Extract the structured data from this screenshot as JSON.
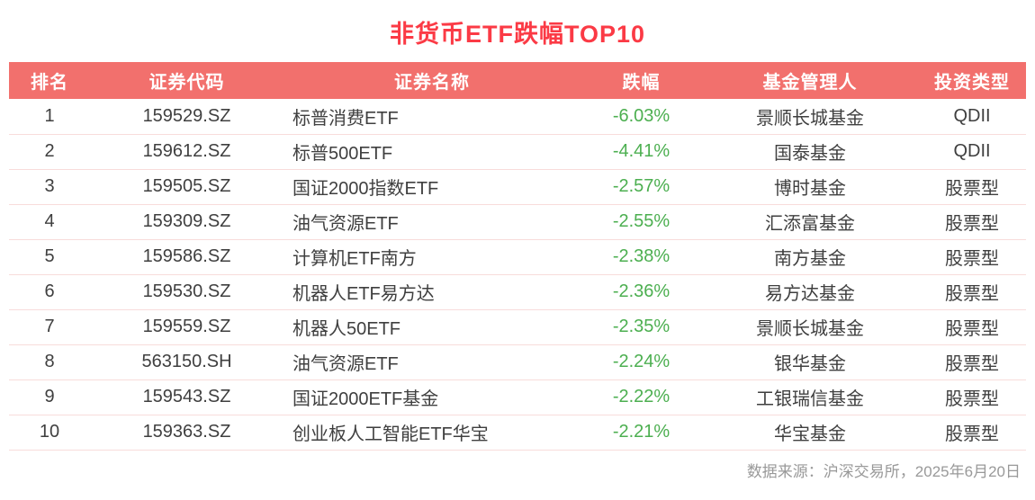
{
  "title": "非货币ETF跌幅TOP10",
  "footer": {
    "source": "数据来源：沪深交易所，2025年6月20日"
  },
  "colors": {
    "title": "#fb3a45",
    "header_bg": "#f2706d",
    "decline": "#4caf50",
    "row_border": "#f8dcdb",
    "text": "#3f3f3f",
    "footer": "#999999"
  },
  "chart_data": {
    "type": "table",
    "title": "非货币ETF跌幅TOP10",
    "columns": [
      "排名",
      "证券代码",
      "证券名称",
      "跌幅",
      "基金管理人",
      "投资类型"
    ],
    "rows": [
      [
        "1",
        "159529.SZ",
        "标普消费ETF",
        "-6.03%",
        "景顺长城基金",
        "QDII"
      ],
      [
        "2",
        "159612.SZ",
        "标普500ETF",
        "-4.41%",
        "国泰基金",
        "QDII"
      ],
      [
        "3",
        "159505.SZ",
        "国证2000指数ETF",
        "-2.57%",
        "博时基金",
        "股票型"
      ],
      [
        "4",
        "159309.SZ",
        "油气资源ETF",
        "-2.55%",
        "汇添富基金",
        "股票型"
      ],
      [
        "5",
        "159586.SZ",
        "计算机ETF南方",
        "-2.38%",
        "南方基金",
        "股票型"
      ],
      [
        "6",
        "159530.SZ",
        "机器人ETF易方达",
        "-2.36%",
        "易方达基金",
        "股票型"
      ],
      [
        "7",
        "159559.SZ",
        "机器人50ETF",
        "-2.35%",
        "景顺长城基金",
        "股票型"
      ],
      [
        "8",
        "563150.SH",
        "油气资源ETF",
        "-2.24%",
        "银华基金",
        "股票型"
      ],
      [
        "9",
        "159543.SZ",
        "国证2000ETF基金",
        "-2.22%",
        "工银瑞信基金",
        "股票型"
      ],
      [
        "10",
        "159363.SZ",
        "创业板人工智能ETF华宝",
        "-2.21%",
        "华宝基金",
        "股票型"
      ]
    ],
    "source": "数据来源：沪深交易所，2025年6月20日"
  }
}
